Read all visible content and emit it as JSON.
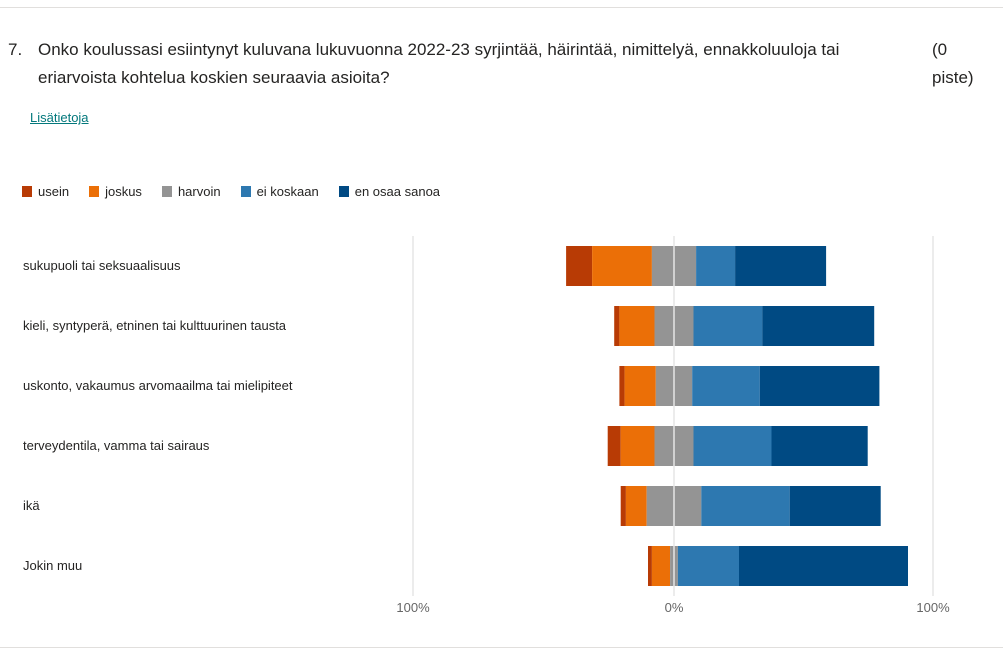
{
  "question": {
    "number": "7.",
    "text": "Onko koulussasi esiintynyt kuluvana lukuvuonna 2022-23 syrjintää, häirintää, nimittelyä, ennakkoluuloja tai eriarvoista kohtelua koskien seuraavia asioita?",
    "points": "(0 piste)",
    "more_info_link": "Lisätietoja"
  },
  "chart_data": {
    "type": "bar",
    "subtype": "diverging-stacked-horizontal",
    "legend_placement": "top-left",
    "categories": [
      "sukupuoli tai seksuaalisuus",
      "kieli, syntyperä, etninen tai kulttuurinen tausta",
      "uskonto, vakaumus arvomaailma tai mielipiteet",
      "terveydentila, vamma tai sairaus",
      "ikä",
      "Jokin muu"
    ],
    "series": [
      {
        "name": "usein",
        "color": "#b83b05",
        "values": [
          10,
          2,
          2,
          5,
          2,
          1.5
        ]
      },
      {
        "name": "joskus",
        "color": "#eb6f07",
        "values": [
          23,
          13.5,
          12,
          13,
          8,
          7
        ]
      },
      {
        "name": "harvoin",
        "color": "#949494",
        "values": [
          17,
          15,
          14,
          15,
          21,
          3
        ]
      },
      {
        "name": "ei koskaan",
        "color": "#2d78b0",
        "values": [
          15,
          26.5,
          26,
          30,
          34,
          23.5
        ]
      },
      {
        "name": "en osaa sanoa",
        "color": "#004a83",
        "values": [
          35,
          43,
          46,
          37,
          35,
          65
        ]
      }
    ],
    "xlim": [
      -100,
      100
    ],
    "xtick_labels": [
      "100%",
      "0%",
      "100%"
    ],
    "grid": true
  }
}
